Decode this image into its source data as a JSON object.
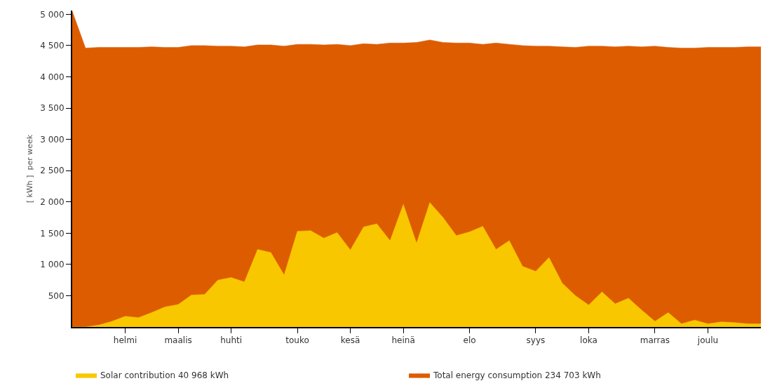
{
  "chart_data": {
    "type": "area",
    "ylabel": "[ kWh ]  per week",
    "categories": [
      null,
      null,
      null,
      null,
      "helmi",
      null,
      null,
      null,
      "maalis",
      null,
      null,
      null,
      "huhti",
      null,
      null,
      null,
      null,
      "touko",
      null,
      null,
      null,
      "kesä",
      null,
      null,
      null,
      "heinä",
      null,
      null,
      null,
      null,
      "elo",
      null,
      null,
      null,
      null,
      "syys",
      null,
      null,
      null,
      "loka",
      null,
      null,
      null,
      null,
      "marras",
      null,
      null,
      null,
      "joulu",
      null,
      null,
      null,
      null
    ],
    "series": [
      {
        "name": "Total energy consumption 234 703 kWh",
        "color": "#dd5c00",
        "values": [
          5050,
          4460,
          4470,
          4470,
          4470,
          4470,
          4480,
          4470,
          4470,
          4500,
          4500,
          4490,
          4490,
          4480,
          4510,
          4510,
          4490,
          4520,
          4520,
          4510,
          4520,
          4500,
          4530,
          4520,
          4540,
          4540,
          4550,
          4590,
          4550,
          4540,
          4540,
          4520,
          4540,
          4520,
          4500,
          4490,
          4490,
          4480,
          4470,
          4490,
          4490,
          4480,
          4490,
          4480,
          4490,
          4470,
          4460,
          4460,
          4470,
          4470,
          4470,
          4480,
          4480
        ]
      },
      {
        "name": "Solar contribution 40 968 kWh",
        "color": "#f9c700",
        "values": [
          0,
          0,
          30,
          90,
          170,
          150,
          230,
          320,
          360,
          510,
          520,
          750,
          790,
          720,
          1240,
          1190,
          830,
          1530,
          1540,
          1420,
          1510,
          1230,
          1600,
          1650,
          1380,
          1960,
          1340,
          1990,
          1750,
          1460,
          1520,
          1610,
          1240,
          1380,
          970,
          890,
          1110,
          700,
          500,
          350,
          560,
          370,
          460,
          270,
          90,
          230,
          50,
          110,
          50,
          80,
          70,
          50,
          50
        ]
      }
    ],
    "ylim": [
      0,
      5060
    ],
    "yticks": [
      {
        "value": 500,
        "label": "500"
      },
      {
        "value": 1000,
        "label": "1 000"
      },
      {
        "value": 1500,
        "label": "1 500"
      },
      {
        "value": 2000,
        "label": "2 000"
      },
      {
        "value": 2500,
        "label": "2 500"
      },
      {
        "value": 3000,
        "label": "3 000"
      },
      {
        "value": 3500,
        "label": "3 500"
      },
      {
        "value": 4000,
        "label": "4 000"
      },
      {
        "value": 4500,
        "label": "4 500"
      },
      {
        "value": 5000,
        "label": "5 000"
      }
    ],
    "legend": "bottom"
  }
}
